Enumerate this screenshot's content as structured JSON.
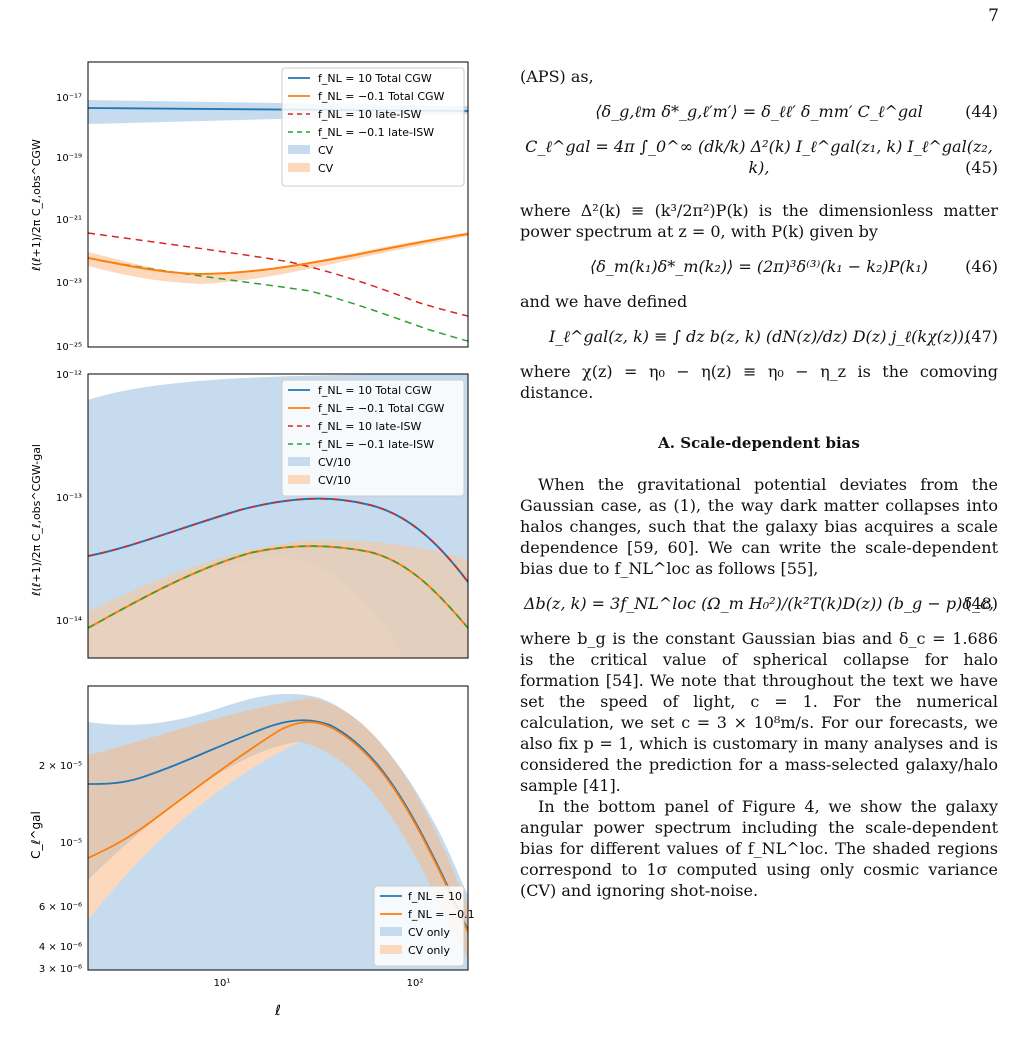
{
  "page_number": "7",
  "figure": {
    "panels": [
      {
        "ylabel": "ℓ(ℓ+1)/2π C_ℓ,obs^CGW",
        "yticks": [
          "10⁻¹⁷",
          "10⁻¹⁹",
          "10⁻²¹",
          "10⁻²³",
          "10⁻²⁵"
        ],
        "legend": [
          "f_NL = 10 Total CGW",
          "f_NL = −0.1 Total CGW",
          "f_NL = 10 late-ISW",
          "f_NL = −0.1 late-ISW",
          "CV",
          "CV"
        ]
      },
      {
        "ylabel": "ℓ(ℓ+1)/2π C_ℓ,obs^CGW-gal",
        "yticks": [
          "10⁻¹²",
          "10⁻¹³",
          "10⁻¹⁴"
        ],
        "legend": [
          "f_NL = 10 Total CGW",
          "f_NL = −0.1 Total CGW",
          "f_NL = 10 late-ISW",
          "f_NL = −0.1 late-ISW",
          "CV/10",
          "CV/10"
        ]
      },
      {
        "ylabel": "C_ℓ^gal",
        "yticks": [
          "2 × 10⁻⁵",
          "10⁻⁵",
          "6 × 10⁻⁶",
          "4 × 10⁻⁶",
          "3 × 10⁻⁶"
        ],
        "legend": [
          "f_NL = 10",
          "f_NL = −0.1",
          "CV only",
          "CV only"
        ]
      }
    ],
    "xticks": [
      "10¹",
      "10²"
    ],
    "xlabel": "ℓ",
    "colors": {
      "blue": "#1f77b4",
      "orange": "#ff7f0e",
      "red": "#d62728",
      "green": "#2ca02c",
      "blue_band": "#c6dcee",
      "orange_band": "#fcd9bd"
    }
  },
  "text": {
    "aps": "(APS) as,",
    "eq44": "⟨δ_g,ℓm δ*_g,ℓ′m′⟩ = δ_ℓℓ′ δ_mm′ C_ℓ^gal",
    "eq44_num": "(44)",
    "eq45": "C_ℓ^gal = 4π ∫_0^∞ (dk/k) Δ²(k) I_ℓ^gal(z₁, k) I_ℓ^gal(z₂, k),",
    "eq45_num": "(45)",
    "p1": "where Δ²(k) ≡ (k³/2π²)P(k) is the dimensionless matter power spectrum at z = 0, with P(k) given by",
    "eq46": "⟨δ_m(k₁)δ*_m(k₂)⟩ = (2π)³δ⁽³⁾(k₁ − k₂)P(k₁)",
    "eq46_num": "(46)",
    "p2": "and we have defined",
    "eq47": "I_ℓ^gal(z, k) ≡ ∫ dz b(z, k) (dN(z)/dz) D(z) j_ℓ(kχ(z)),",
    "eq47_num": "(47)",
    "p3": "where χ(z) = η₀ − η(z) ≡ η₀ − η_z is the comoving distance.",
    "section": "A.   Scale-dependent bias",
    "p4": "When the gravitational potential deviates from the Gaussian case, as (1), the way dark matter collapses into halos changes, such that the galaxy bias acquires a scale dependence [59, 60]. We can write the scale-dependent bias due to f_NL^loc as follows [55],",
    "eq48": "Δb(z, k) = 3f_NL^loc (Ω_m H₀²)/(k²T(k)D(z)) (b_g − p)δ_c,",
    "eq48_num": "(48)",
    "p5": "where b_g is the constant Gaussian bias and δ_c = 1.686 is the critical value of spherical collapse for halo formation [54]. We note that throughout the text we have set the speed of light, c = 1. For the numerical calculation, we set c = 3 × 10⁸m/s. For our forecasts, we also fix p = 1, which is customary in many analyses and is considered the prediction for a mass-selected galaxy/halo sample [41].",
    "p6": "In the bottom panel of Figure 4, we show the galaxy angular power spectrum including the scale-dependent bias for different values of f_NL^loc. The shaded regions correspond to 1σ computed using only cosmic variance (CV) and ignoring shot-noise."
  }
}
